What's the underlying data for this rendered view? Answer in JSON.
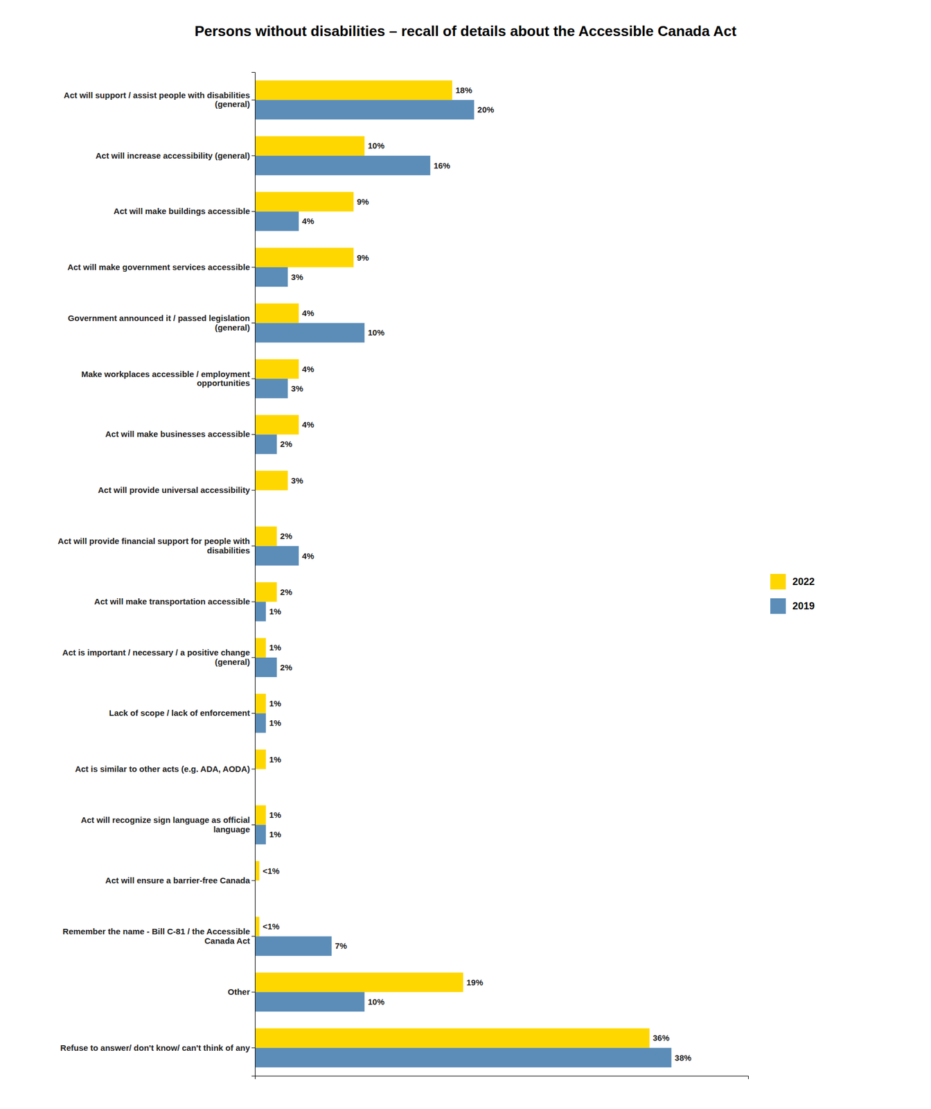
{
  "chart_data": {
    "type": "bar",
    "orientation": "horizontal",
    "title": "Persons without disabilities – recall of details about the Accessible Canada Act",
    "categories": [
      "Act will support / assist people with disabilities\n(general)",
      "Act will increase accessibility (general)",
      "Act will make buildings accessible",
      "Act will make government services accessible",
      "Government announced it / passed legislation\n(general)",
      "Make workplaces accessible / employment\nopportunities",
      "Act will make businesses accessible",
      "Act will provide universal accessibility",
      "Act will provide financial support for people with\ndisabilities",
      "Act will make transportation accessible",
      "Act is important / necessary / a positive change\n(general)",
      "Lack of scope / lack of enforcement",
      "Act is similar to other acts (e.g. ADA, AODA)",
      "Act will recognize sign language as official\nlanguage",
      "Act will ensure a barrier-free Canada",
      "Remember the name - Bill C-81 / the Accessible\nCanada Act",
      "Other",
      "Refuse to answer/ don't know/ can't think of any"
    ],
    "series": [
      {
        "name": "2022",
        "color": "#FFD700",
        "values": [
          18,
          10,
          9,
          9,
          4,
          4,
          4,
          3,
          2,
          2,
          1,
          1,
          1,
          1,
          0.4,
          0.4,
          19,
          36
        ],
        "value_labels": [
          "18%",
          "10%",
          "9%",
          "9%",
          "4%",
          "4%",
          "4%",
          "3%",
          "2%",
          "2%",
          "1%",
          "1%",
          "1%",
          "1%",
          "<1%",
          "<1%",
          "19%",
          "36%"
        ]
      },
      {
        "name": "2019",
        "color": "#5B8DB8",
        "values": [
          20,
          16,
          4,
          3,
          10,
          3,
          2,
          0,
          4,
          1,
          2,
          1,
          0,
          1,
          0,
          7,
          10,
          38
        ],
        "value_labels": [
          "20%",
          "16%",
          "4%",
          "3%",
          "10%",
          "3%",
          "2%",
          null,
          "4%",
          "1%",
          "2%",
          "1%",
          null,
          "1%",
          null,
          "7%",
          "10%",
          "38%"
        ]
      }
    ],
    "xlim": [
      0,
      45
    ],
    "data_labels": true,
    "legend": "right",
    "grid": false,
    "tick_labels": "y"
  }
}
